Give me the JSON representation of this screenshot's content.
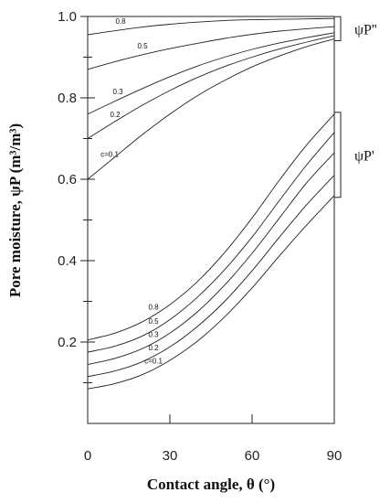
{
  "chart_data": {
    "type": "line",
    "xlabel": "Contact angle, θ (°)",
    "ylabel": "Pore moisture, ψP (m³/m³)",
    "xlim": [
      0,
      90
    ],
    "ylim": [
      0,
      1.0
    ],
    "x_ticks": [
      "0",
      "30",
      "60",
      "90"
    ],
    "y_ticks": [
      "0.2",
      "0.4",
      "0.6",
      "0.8",
      "1.0"
    ],
    "grid": false,
    "x": [
      0,
      10,
      20,
      30,
      40,
      50,
      60,
      70,
      80,
      90
    ],
    "groups": [
      {
        "label": "ψP''",
        "series": [
          {
            "name": "0.8",
            "values": [
              0.955,
              0.965,
              0.974,
              0.981,
              0.986,
              0.99,
              0.992,
              0.993,
              0.994,
              0.995
            ]
          },
          {
            "name": "0.5",
            "values": [
              0.87,
              0.889,
              0.906,
              0.921,
              0.934,
              0.946,
              0.956,
              0.964,
              0.97,
              0.975
            ]
          },
          {
            "name": "0.3",
            "values": [
              0.76,
              0.792,
              0.823,
              0.852,
              0.878,
              0.9,
              0.919,
              0.935,
              0.948,
              0.96
            ]
          },
          {
            "name": "0.2",
            "values": [
              0.7,
              0.742,
              0.782,
              0.818,
              0.85,
              0.877,
              0.9,
              0.92,
              0.937,
              0.953
            ]
          },
          {
            "name": "c=0.1",
            "values": [
              0.6,
              0.655,
              0.71,
              0.76,
              0.805,
              0.843,
              0.876,
              0.903,
              0.926,
              0.945
            ]
          }
        ]
      },
      {
        "label": "ψP'",
        "series": [
          {
            "name": "0.8",
            "values": [
              0.205,
              0.222,
              0.25,
              0.292,
              0.348,
              0.42,
              0.505,
              0.598,
              0.685,
              0.76
            ]
          },
          {
            "name": "0.5",
            "values": [
              0.175,
              0.19,
              0.215,
              0.255,
              0.31,
              0.378,
              0.458,
              0.548,
              0.636,
              0.715
            ]
          },
          {
            "name": "0.3",
            "values": [
              0.145,
              0.16,
              0.184,
              0.222,
              0.274,
              0.34,
              0.418,
              0.505,
              0.592,
              0.665
            ]
          },
          {
            "name": "0.2",
            "values": [
              0.115,
              0.129,
              0.152,
              0.188,
              0.238,
              0.3,
              0.375,
              0.458,
              0.538,
              0.61
            ]
          },
          {
            "name": "c=0.1",
            "values": [
              0.085,
              0.098,
              0.12,
              0.155,
              0.202,
              0.262,
              0.333,
              0.412,
              0.488,
              0.56
            ]
          }
        ]
      }
    ]
  }
}
